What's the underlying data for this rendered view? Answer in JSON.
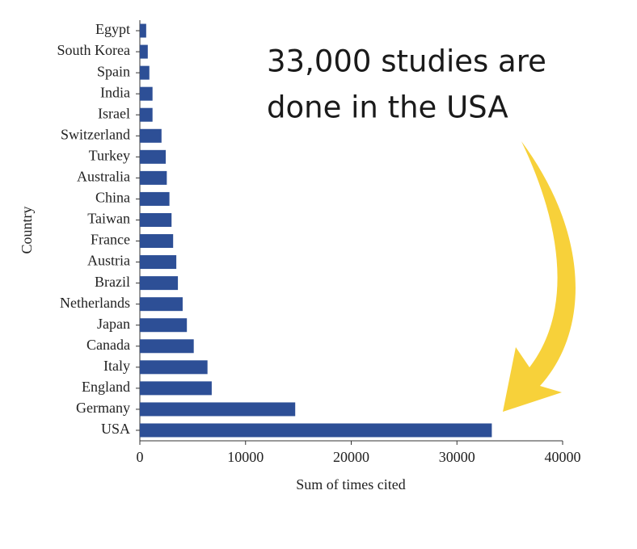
{
  "chart_data": {
    "type": "bar",
    "orientation": "horizontal",
    "annotation": [
      "33,000 studies are",
      "done in the USA"
    ],
    "x_label": "Sum of times cited",
    "y_label": "Country",
    "categories": [
      "Egypt",
      "South Korea",
      "Spain",
      "India",
      "Israel",
      "Switzerland",
      "Turkey",
      "Australia",
      "China",
      "Taiwan",
      "France",
      "Austria",
      "Brazil",
      "Netherlands",
      "Japan",
      "Canada",
      "Italy",
      "England",
      "Germany",
      "USA"
    ],
    "values": [
      600,
      750,
      900,
      1200,
      1200,
      2050,
      2450,
      2550,
      2800,
      3000,
      3150,
      3450,
      3600,
      4050,
      4450,
      5100,
      6400,
      6800,
      14700,
      33300
    ],
    "color": "#2d4f96",
    "xlim": [
      0,
      40000
    ],
    "xticks": [
      0,
      10000,
      20000,
      30000,
      40000
    ]
  }
}
